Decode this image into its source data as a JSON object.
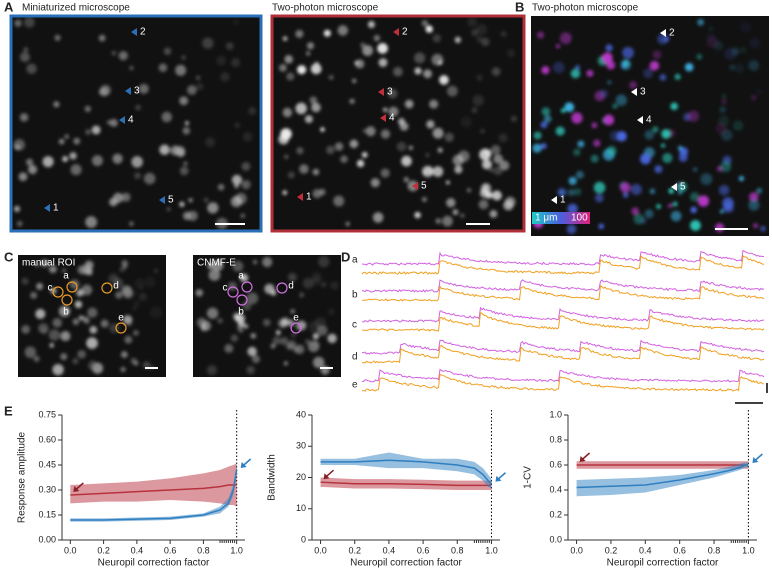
{
  "panel_labels": [
    "A",
    "B",
    "C",
    "D",
    "E"
  ],
  "panel_a": {
    "left_title": "Miniaturized microscope",
    "right_title": "Two-photon microscope",
    "markers": [
      "1",
      "2",
      "3",
      "4",
      "5"
    ]
  },
  "panel_b": {
    "title": "Two-photon microscope",
    "colorbar_labels": [
      "1 μm",
      "100"
    ]
  },
  "panel_c": {
    "left_title": "manual ROI",
    "right_title": "CNMF-E",
    "roi_labels": [
      "a",
      "b",
      "c",
      "d",
      "e"
    ]
  },
  "panel_d": {
    "trace_labels": [
      "a",
      "b",
      "c",
      "d",
      "e"
    ]
  },
  "chart_data": [
    {
      "type": "line",
      "xlabel": "Neuropil correction factor",
      "ylabel": "Response amplitude",
      "x": [
        0,
        0.2,
        0.4,
        0.6,
        0.8,
        0.9,
        0.95,
        0.98,
        1.0
      ],
      "xlim": [
        -0.05,
        1.05
      ],
      "xticks": [
        {
          "value": 0,
          "label": "0.0"
        },
        0.2,
        0.4,
        0.6,
        0.8,
        {
          "value": 1,
          "label": "1.0"
        }
      ],
      "ylim": [
        0,
        0.75
      ],
      "yticks": [
        {
          "value": 0,
          "label": "0.00"
        },
        0.15,
        {
          "value": 0.3,
          "label": "0.30"
        },
        0.45,
        {
          "value": 0.6,
          "label": "0.60"
        },
        0.75
      ],
      "series": [
        {
          "color": "#b8323d",
          "values": [
            0.27,
            0.28,
            0.29,
            0.3,
            0.31,
            0.32,
            0.33,
            0.33,
            0.33
          ],
          "lower": [
            0.22,
            0.23,
            0.23,
            0.24,
            0.23,
            0.22,
            0.21,
            0.21,
            0.2
          ],
          "upper": [
            0.33,
            0.34,
            0.35,
            0.37,
            0.4,
            0.42,
            0.44,
            0.45,
            0.46
          ]
        },
        {
          "color": "#2f7fc1",
          "values": [
            0.12,
            0.12,
            0.125,
            0.13,
            0.15,
            0.18,
            0.22,
            0.3,
            0.42
          ],
          "lower": [
            0.11,
            0.11,
            0.115,
            0.12,
            0.14,
            0.16,
            0.2,
            0.27,
            0.38
          ],
          "upper": [
            0.13,
            0.13,
            0.135,
            0.14,
            0.16,
            0.2,
            0.25,
            0.33,
            0.46
          ]
        }
      ]
    },
    {
      "type": "line",
      "xlabel": "Neuropil correction factor",
      "ylabel": "Bandwidth",
      "x": [
        0,
        0.2,
        0.4,
        0.6,
        0.8,
        0.9,
        0.95,
        0.98,
        1.0
      ],
      "xlim": [
        -0.05,
        1.05
      ],
      "xticks": [
        {
          "value": 0,
          "label": "0.0"
        },
        0.2,
        0.4,
        0.6,
        0.8,
        {
          "value": 1,
          "label": "1.0"
        }
      ],
      "ylim": [
        0,
        40
      ],
      "yticks": [
        0,
        10,
        20,
        30,
        40
      ],
      "series": [
        {
          "color": "#b8323d",
          "values": [
            18.5,
            18,
            18,
            17.8,
            17.5,
            17.5,
            17.5,
            17.5,
            17.5
          ],
          "lower": [
            17,
            16.5,
            16.5,
            16.3,
            16,
            16,
            16,
            16,
            16
          ],
          "upper": [
            20,
            19.5,
            19.5,
            19.3,
            19,
            19,
            19,
            19,
            19
          ]
        },
        {
          "color": "#2f7fc1",
          "values": [
            25,
            25,
            25.5,
            25,
            24,
            23,
            21,
            19,
            18
          ],
          "lower": [
            24,
            24,
            23,
            23,
            22,
            21,
            19,
            17,
            16.5
          ],
          "upper": [
            26,
            26,
            28,
            26,
            26,
            25,
            23,
            21,
            19.5
          ]
        }
      ]
    },
    {
      "type": "line",
      "xlabel": "Neuropil correction factor",
      "ylabel": "1-CV",
      "x": [
        0,
        0.2,
        0.4,
        0.6,
        0.8,
        0.9,
        0.95,
        0.98,
        1.0
      ],
      "xlim": [
        -0.05,
        1.05
      ],
      "xticks": [
        {
          "value": 0,
          "label": "0.0"
        },
        0.2,
        0.4,
        0.6,
        0.8,
        {
          "value": 1,
          "label": "1.0"
        }
      ],
      "ylim": [
        0,
        1
      ],
      "yticks": [
        {
          "value": 0,
          "label": "0.0"
        },
        0.2,
        0.4,
        0.6,
        0.8,
        {
          "value": 1,
          "label": "1.0"
        }
      ],
      "series": [
        {
          "color": "#b8323d",
          "values": [
            0.6,
            0.6,
            0.6,
            0.6,
            0.6,
            0.6,
            0.6,
            0.6,
            0.6
          ],
          "lower": [
            0.57,
            0.57,
            0.57,
            0.57,
            0.57,
            0.57,
            0.57,
            0.57,
            0.57
          ],
          "upper": [
            0.63,
            0.63,
            0.63,
            0.63,
            0.63,
            0.63,
            0.63,
            0.63,
            0.63
          ]
        },
        {
          "color": "#2f7fc1",
          "values": [
            0.42,
            0.43,
            0.44,
            0.48,
            0.53,
            0.56,
            0.58,
            0.6,
            0.6
          ],
          "lower": [
            0.35,
            0.36,
            0.38,
            0.44,
            0.5,
            0.54,
            0.56,
            0.58,
            0.58
          ],
          "upper": [
            0.48,
            0.49,
            0.5,
            0.52,
            0.56,
            0.59,
            0.61,
            0.62,
            0.62
          ]
        }
      ]
    }
  ]
}
